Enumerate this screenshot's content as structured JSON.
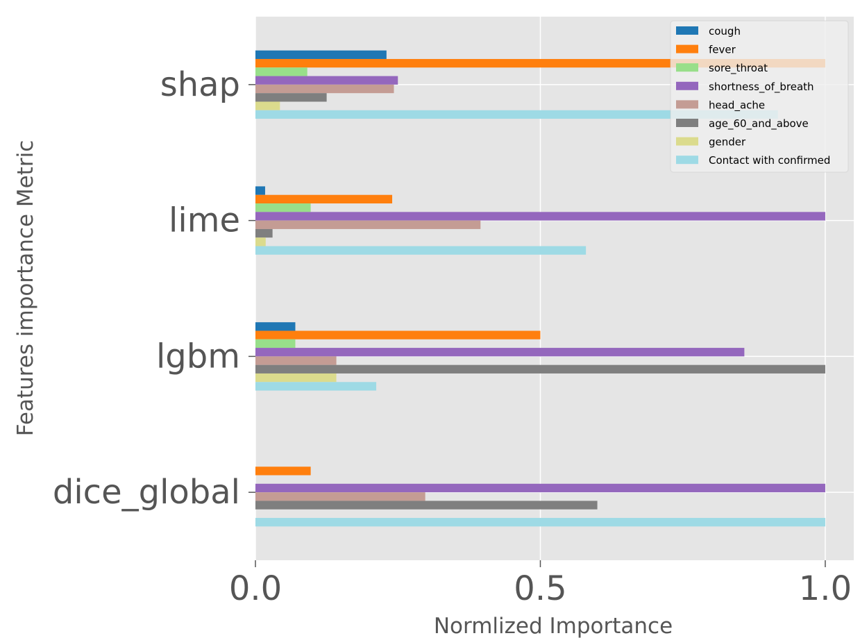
{
  "chart_data": {
    "type": "bar",
    "orientation": "horizontal",
    "xlabel": "Normlized Importance",
    "ylabel": "Features importance Metric",
    "xlim": [
      0,
      1.05
    ],
    "xticks": [
      "0.0",
      "0.5",
      "1.0"
    ],
    "categories": [
      "dice_global",
      "lgbm",
      "lime",
      "shap"
    ],
    "grid": true,
    "legend_position": "top-right",
    "series": [
      {
        "name": "cough",
        "color": "#1f77b4",
        "values": [
          0,
          0.07,
          0.017,
          0.23
        ]
      },
      {
        "name": "fever",
        "color": "#ff7f0e",
        "values": [
          0.097,
          0.5,
          0.24,
          1.0
        ]
      },
      {
        "name": "sore_throat",
        "color": "#98df8a",
        "values": [
          0,
          0.07,
          0.097,
          0.091
        ]
      },
      {
        "name": "shortness_of_breath",
        "color": "#9467bd",
        "values": [
          1.0,
          0.858,
          1.0,
          0.25
        ]
      },
      {
        "name": "head_ache",
        "color": "#c49c94",
        "values": [
          0.298,
          0.142,
          0.395,
          0.243
        ]
      },
      {
        "name": "age_60_and_above",
        "color": "#7f7f7f",
        "values": [
          0.6,
          1.0,
          0.03,
          0.125
        ]
      },
      {
        "name": "gender",
        "color": "#dbdb8d",
        "values": [
          0,
          0.142,
          0.018,
          0.043
        ]
      },
      {
        "name": "Contact with confirmed",
        "color": "#9edae5",
        "values": [
          1.0,
          0.212,
          0.58,
          0.917
        ]
      }
    ]
  }
}
